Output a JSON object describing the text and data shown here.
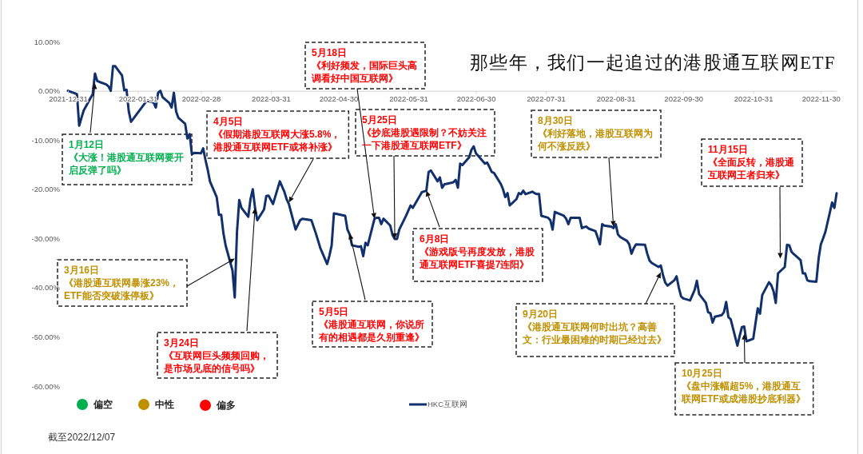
{
  "chart_data": {
    "type": "line",
    "title": "那些年，我们一起追过的港股通互联网ETF",
    "x": [
      "2021-12-31",
      "2022-01-03",
      "2022-01-04",
      "2022-01-05",
      "2022-01-06",
      "2022-01-07",
      "2022-01-10",
      "2022-01-11",
      "2022-01-12",
      "2022-01-13",
      "2022-01-14",
      "2022-01-17",
      "2022-01-18",
      "2022-01-19",
      "2022-01-20",
      "2022-01-21",
      "2022-01-24",
      "2022-01-25",
      "2022-01-26",
      "2022-01-27",
      "2022-01-28",
      "2022-02-04",
      "2022-02-07",
      "2022-02-08",
      "2022-02-09",
      "2022-02-10",
      "2022-02-11",
      "2022-02-14",
      "2022-02-15",
      "2022-02-16",
      "2022-02-17",
      "2022-02-18",
      "2022-02-21",
      "2022-02-22",
      "2022-02-23",
      "2022-02-24",
      "2022-02-25",
      "2022-02-28",
      "2022-03-01",
      "2022-03-02",
      "2022-03-03",
      "2022-03-04",
      "2022-03-07",
      "2022-03-08",
      "2022-03-09",
      "2022-03-10",
      "2022-03-11",
      "2022-03-14",
      "2022-03-15",
      "2022-03-16",
      "2022-03-17",
      "2022-03-18",
      "2022-03-21",
      "2022-03-22",
      "2022-03-23",
      "2022-03-24",
      "2022-03-25",
      "2022-03-28",
      "2022-03-29",
      "2022-03-30",
      "2022-04-01",
      "2022-04-04",
      "2022-04-06",
      "2022-04-07",
      "2022-04-08",
      "2022-04-11",
      "2022-04-13",
      "2022-04-14",
      "2022-04-18",
      "2022-04-20",
      "2022-04-21",
      "2022-04-22",
      "2022-04-25",
      "2022-04-26",
      "2022-04-27",
      "2022-04-28",
      "2022-04-29",
      "2022-05-03",
      "2022-05-04",
      "2022-05-05",
      "2022-05-06",
      "2022-05-09",
      "2022-05-10",
      "2022-05-11",
      "2022-05-12",
      "2022-05-13",
      "2022-05-16",
      "2022-05-17",
      "2022-05-18",
      "2022-05-19",
      "2022-05-20",
      "2022-05-23",
      "2022-05-24",
      "2022-05-25",
      "2022-05-26",
      "2022-05-27",
      "2022-05-30",
      "2022-06-01",
      "2022-06-02",
      "2022-06-06",
      "2022-06-08",
      "2022-06-09",
      "2022-06-10",
      "2022-06-13",
      "2022-06-14",
      "2022-06-15",
      "2022-06-16",
      "2022-06-17",
      "2022-06-20",
      "2022-06-21",
      "2022-06-22",
      "2022-06-23",
      "2022-06-24",
      "2022-06-27",
      "2022-06-28",
      "2022-06-29",
      "2022-06-30",
      "2022-07-04",
      "2022-07-05",
      "2022-07-06",
      "2022-07-07",
      "2022-07-08",
      "2022-07-11",
      "2022-07-12",
      "2022-07-13",
      "2022-07-14",
      "2022-07-15",
      "2022-07-18",
      "2022-07-19",
      "2022-07-20",
      "2022-07-21",
      "2022-07-22",
      "2022-07-25",
      "2022-07-26",
      "2022-07-27",
      "2022-07-28",
      "2022-07-29",
      "2022-08-01",
      "2022-08-02",
      "2022-08-03",
      "2022-08-04",
      "2022-08-05",
      "2022-08-08",
      "2022-08-09",
      "2022-08-10",
      "2022-08-11",
      "2022-08-12",
      "2022-08-15",
      "2022-08-16",
      "2022-08-17",
      "2022-08-18",
      "2022-08-19",
      "2022-08-22",
      "2022-08-23",
      "2022-08-24",
      "2022-08-25",
      "2022-08-26",
      "2022-08-29",
      "2022-08-30",
      "2022-08-31",
      "2022-09-01",
      "2022-09-02",
      "2022-09-05",
      "2022-09-06",
      "2022-09-07",
      "2022-09-08",
      "2022-09-09",
      "2022-09-13",
      "2022-09-14",
      "2022-09-15",
      "2022-09-16",
      "2022-09-19",
      "2022-09-20",
      "2022-09-21",
      "2022-09-22",
      "2022-09-23",
      "2022-09-26",
      "2022-09-27",
      "2022-09-28",
      "2022-09-29",
      "2022-09-30",
      "2022-10-03",
      "2022-10-05",
      "2022-10-06",
      "2022-10-07",
      "2022-10-10",
      "2022-10-11",
      "2022-10-12",
      "2022-10-13",
      "2022-10-14",
      "2022-10-17",
      "2022-10-18",
      "2022-10-19",
      "2022-10-20",
      "2022-10-21",
      "2022-10-24",
      "2022-10-25",
      "2022-10-26",
      "2022-10-27",
      "2022-10-28",
      "2022-10-31",
      "2022-11-01",
      "2022-11-02",
      "2022-11-03",
      "2022-11-04",
      "2022-11-07",
      "2022-11-08",
      "2022-11-09",
      "2022-11-10",
      "2022-11-11",
      "2022-11-14",
      "2022-11-15",
      "2022-11-16",
      "2022-11-17",
      "2022-11-18",
      "2022-11-21",
      "2022-11-22",
      "2022-11-23",
      "2022-11-24",
      "2022-11-25",
      "2022-11-28",
      "2022-11-29",
      "2022-11-30",
      "2022-12-01",
      "2022-12-02",
      "2022-12-05",
      "2022-12-06",
      "2022-12-07"
    ],
    "series": [
      {
        "name": "HKC互联网",
        "color": "#12306c",
        "values": [
          0,
          -0.5,
          -0.7,
          -7.1,
          -5.5,
          -4.0,
          -1.5,
          -0.7,
          3.5,
          2.0,
          1.8,
          1.3,
          0.9,
          0.0,
          5.0,
          5.0,
          3.1,
          0.1,
          0.2,
          -4.2,
          -6.3,
          -2.0,
          -2.4,
          -3.4,
          -0.4,
          0.0,
          -1.3,
          -2.5,
          -3.4,
          -0.4,
          -4.2,
          -5.5,
          -6.7,
          -9.7,
          -8.8,
          -12.9,
          -12.6,
          -12.7,
          -11.7,
          -14.0,
          -16.0,
          -18.4,
          -21.6,
          -25.2,
          -25.2,
          -29.0,
          -31.5,
          -36.5,
          -42.0,
          -28.7,
          -22.2,
          -23.8,
          -25.6,
          -22.0,
          -20.0,
          -23.8,
          -26.3,
          -24.1,
          -21.4,
          -21.3,
          -23.0,
          -18.4,
          -20.5,
          -22.0,
          -23.0,
          -28.2,
          -26.3,
          -26.0,
          -26.3,
          -29.0,
          -30.5,
          -32.0,
          -35.2,
          -33.5,
          -31.4,
          -24.9,
          -25.0,
          -25.4,
          -28.2,
          -29.2,
          -31.4,
          -31.7,
          -31.6,
          -33.6,
          -30.9,
          -31.4,
          -26.0,
          -25.8,
          -25.8,
          -27.1,
          -26.0,
          -27.4,
          -29.3,
          -30.1,
          -30.1,
          -28.2,
          -25.4,
          -23.3,
          -23.8,
          -20.6,
          -20.3,
          -16.5,
          -16.2,
          -18.4,
          -17.6,
          -19.7,
          -19.0,
          -18.9,
          -18.6,
          -18.1,
          -19.7,
          -14.8,
          -15.1,
          -13.5,
          -12.0,
          -11.3,
          -12.7,
          -14.8,
          -14.6,
          -15.5,
          -16.5,
          -16.7,
          -18.9,
          -20.0,
          -21.6,
          -20.8,
          -23.3,
          -22.0,
          -20.8,
          -21.0,
          -20.3,
          -21.0,
          -20.5,
          -20.8,
          -21.0,
          -21.0,
          -25.4,
          -25.8,
          -26.3,
          -28.2,
          -24.6,
          -24.8,
          -25.4,
          -26.0,
          -27.1,
          -25.8,
          -25.8,
          -25.8,
          -27.9,
          -27.7,
          -27.6,
          -28.0,
          -28.5,
          -29.8,
          -31.2,
          -27.1,
          -27.4,
          -27.6,
          -27.9,
          -27.1,
          -29.2,
          -29.7,
          -30.5,
          -31.2,
          -33.1,
          -32.0,
          -31.2,
          -31.3,
          -33.1,
          -34.5,
          -35.0,
          -35.8,
          -35.5,
          -37.5,
          -39.0,
          -39.6,
          -38.5,
          -37.7,
          -40.0,
          -41.8,
          -42.2,
          -42.6,
          -40.5,
          -38.6,
          -41.3,
          -43.1,
          -45.0,
          -45.2,
          -47.1,
          -45.9,
          -45.6,
          -45.0,
          -42.9,
          -46.0,
          -46.4,
          -51.8,
          -49.8,
          -48.0,
          -47.9,
          -50.9,
          -50.4,
          -47.3,
          -44.2,
          -45.3,
          -41.5,
          -38.9,
          -39.5,
          -40.7,
          -43.1,
          -37.1,
          -35.8,
          -31.3,
          -31.4,
          -32.7,
          -33.2,
          -34.4,
          -37.1,
          -37.1,
          -38.5,
          -38.7,
          -38.8,
          -34.1,
          -31.2,
          -30.0,
          -28.7,
          -22.7,
          -23.8,
          -20.8
        ]
      }
    ],
    "xlim": [
      "2021-12-31",
      "2022-12-07"
    ],
    "xticks": [
      "2021-12-31",
      "2022-01-31",
      "2022-02-28",
      "2022-03-31",
      "2022-04-30",
      "2022-05-31",
      "2022-06-30",
      "2022-07-31",
      "2022-08-31",
      "2022-09-30",
      "2022-10-31",
      "2022-11-30"
    ],
    "ylim": [
      -60,
      10
    ],
    "yticks": [
      {
        "value": 10,
        "label": "10.00%"
      },
      {
        "value": 0,
        "label": "0.00%"
      },
      {
        "value": -10,
        "label": "-10.00%"
      },
      {
        "value": -20,
        "label": "-20.00%"
      },
      {
        "value": -30,
        "label": "-30.00%"
      },
      {
        "value": -40,
        "label": "-40.00%"
      },
      {
        "value": -50,
        "label": "-50.00%"
      },
      {
        "value": -60,
        "label": "-60.00%"
      }
    ],
    "grid": false,
    "legend": "bottom",
    "line_style": "solid",
    "annotations": [
      {
        "text": "1月12日《大涨！港股通互联网要开启反弹了吗》",
        "x": "2022-01-12",
        "y": 1.5
      },
      {
        "text": "3月16日《港股通互联网暴涨23%，ETF能否突破涨停板》",
        "x": "2022-03-15",
        "y": -34.1
      },
      {
        "text": "3月24日《互联网巨头频频回购，是市场见底的信号吗》",
        "x": "2022-03-24",
        "y": -23.8
      },
      {
        "text": "4月5日《假期港股互联网大涨5.8%，港股通互联网ETF或将补涨》",
        "x": "2022-04-08",
        "y": -22.7
      },
      {
        "text": "5月5日《港股通互联网，你说所有的相遇都是久别重逢》",
        "x": "2022-05-05",
        "y": -29.0
      },
      {
        "text": "5月18日《利好频发，国际巨头高调看好中国互联网》",
        "x": "2022-05-16",
        "y": -26.0
      },
      {
        "text": "5月25日《抄底港股遇限制？不妨关注一下港股通互联网ETF》",
        "x": "2022-05-25",
        "y": -30.1
      },
      {
        "text": "6月8日《游戏版号再度发放，港股通互联网ETF喜提7连阳》",
        "x": "2022-06-08",
        "y": -20.3
      },
      {
        "text": "8月30日《利好落地，港股互联网为何不涨反跌》",
        "x": "2022-08-30",
        "y": -27.6
      },
      {
        "text": "9月20日《港股通互联网何时出坑？高善文：行业最困难的时期已经过去》",
        "x": "2022-09-20",
        "y": -36.9
      },
      {
        "text": "10月25日《盘中涨幅超5%，港股通互联网ETF或成港股抄底利器》",
        "x": "2022-10-27",
        "y": -49.4
      },
      {
        "text": "11月15日《全面反转，港股通互联网王者归来》",
        "x": "2022-11-12",
        "y": -34.1
      },
      "偏空",
      "中性",
      "偏多",
      "截至2022/12/07"
    ]
  }
}
